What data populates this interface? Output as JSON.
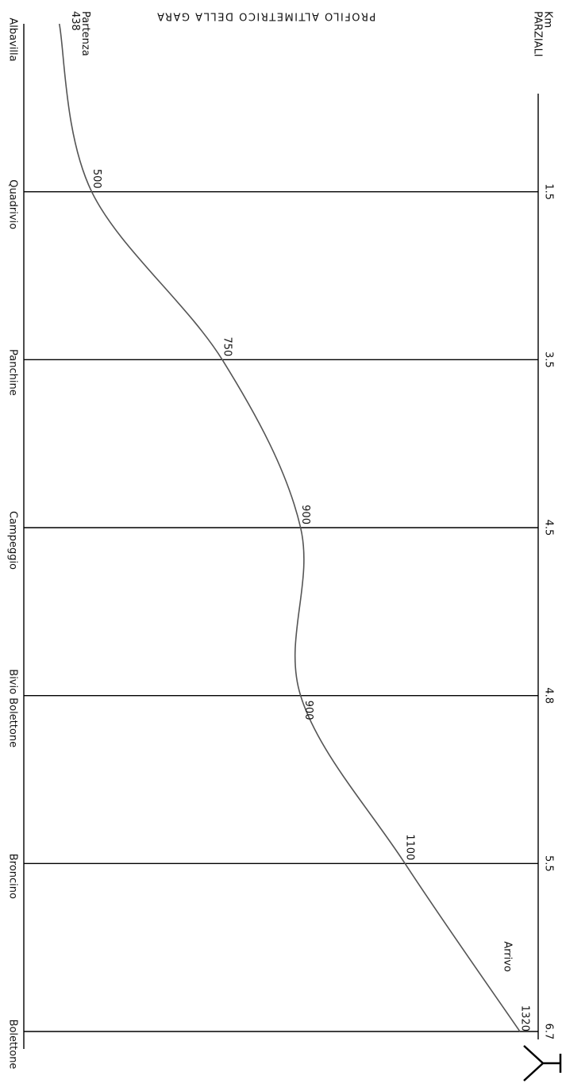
{
  "chart_data": {
    "type": "line",
    "title": "PROFILO ALTIMETRICO DELLA GARA",
    "km_header": "Km",
    "km_subheader": "PARZIALI",
    "categories": [
      "Albavilla",
      "Quadrivio",
      "Panchine",
      "Campeggio",
      "Bivio Bolettone",
      "Broncino",
      "Bolettone"
    ],
    "km": [
      null,
      1.5,
      3.5,
      4.5,
      4.8,
      5.5,
      6.7
    ],
    "values": [
      438,
      500,
      750,
      900,
      900,
      1100,
      1320
    ],
    "start_label": "Partenza",
    "end_label": "Arrivo",
    "ylim": [
      370,
      1355
    ],
    "color": "#555555"
  }
}
